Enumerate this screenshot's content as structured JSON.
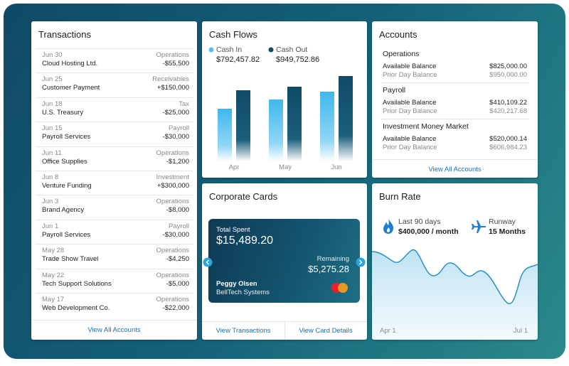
{
  "transactions": {
    "title": "Transactions",
    "rows": [
      {
        "date": "Jun 30",
        "category": "Operations",
        "payee": "Cloud Hosting Ltd.",
        "amount": "-$55,500"
      },
      {
        "date": "Jun 25",
        "category": "Receivables",
        "payee": "Customer Payment",
        "amount": "+$150,000"
      },
      {
        "date": "Jun 18",
        "category": "Tax",
        "payee": "U.S. Treasury",
        "amount": "-$25,000"
      },
      {
        "date": "Jun 15",
        "category": "Payroll",
        "payee": "Payroll Services",
        "amount": "-$30,000"
      },
      {
        "date": "Jun 11",
        "category": "Operations",
        "payee": "Office Supplies",
        "amount": "-$1,200"
      },
      {
        "date": "Jun 8",
        "category": "Investment",
        "payee": "Venture Funding",
        "amount": "+$300,000"
      },
      {
        "date": "Jun 3",
        "category": "Operations",
        "payee": "Brand Agency",
        "amount": "-$8,000"
      },
      {
        "date": "Jun 1",
        "category": "Payroll",
        "payee": "Payroll Services",
        "amount": "-$30,000"
      },
      {
        "date": "May 28",
        "category": "Operations",
        "payee": "Trade Show Travel",
        "amount": "-$4,250"
      },
      {
        "date": "May 22",
        "category": "Operations",
        "payee": "Tech Support Solutions",
        "amount": "-$5,000"
      },
      {
        "date": "May 17",
        "category": "Operations",
        "payee": "Web Development Co.",
        "amount": "-$22,000"
      }
    ],
    "footer": "View All Accounts"
  },
  "cash_flows": {
    "title": "Cash Flows",
    "cash_in": {
      "label": "Cash In",
      "value": "$792,457.82"
    },
    "cash_out": {
      "label": "Cash Out",
      "value": "$949,752.86"
    },
    "months": [
      "Apr",
      "May",
      "Jun"
    ]
  },
  "accounts": {
    "title": "Accounts",
    "groups": [
      {
        "name": "Operations",
        "available_label": "Available Balance",
        "available": "$825,000.00",
        "prior_label": "Prior Day Balance",
        "prior": "$950,000.00"
      },
      {
        "name": "Payroll",
        "available_label": "Available Balance",
        "available": "$410,109.22",
        "prior_label": "Prior Day Balance",
        "prior": "$420,217.68"
      },
      {
        "name": "Investment Money Market",
        "available_label": "Available Balance",
        "available": "$520,000.14",
        "prior_label": "Prior Day Balance",
        "prior": "$606,984.23"
      }
    ],
    "footer": "View All Accounts"
  },
  "corporate_cards": {
    "title": "Corporate Cards",
    "total_spent_label": "Total Spent",
    "total_spent": "$15,489.20",
    "remaining_label": "Remaining",
    "remaining": "$5,275.28",
    "holder": "Peggy Olsen",
    "company": "BellTech Systems",
    "actions": [
      "View Transactions",
      "View Card Details"
    ]
  },
  "burn_rate": {
    "title": "Burn Rate",
    "last90_label": "Last 90 days",
    "last90_value": "$400,000 / month",
    "runway_label": "Runway",
    "runway_value": "15 Months",
    "x_labels": [
      "Apr 1",
      "Jul 1"
    ]
  }
}
